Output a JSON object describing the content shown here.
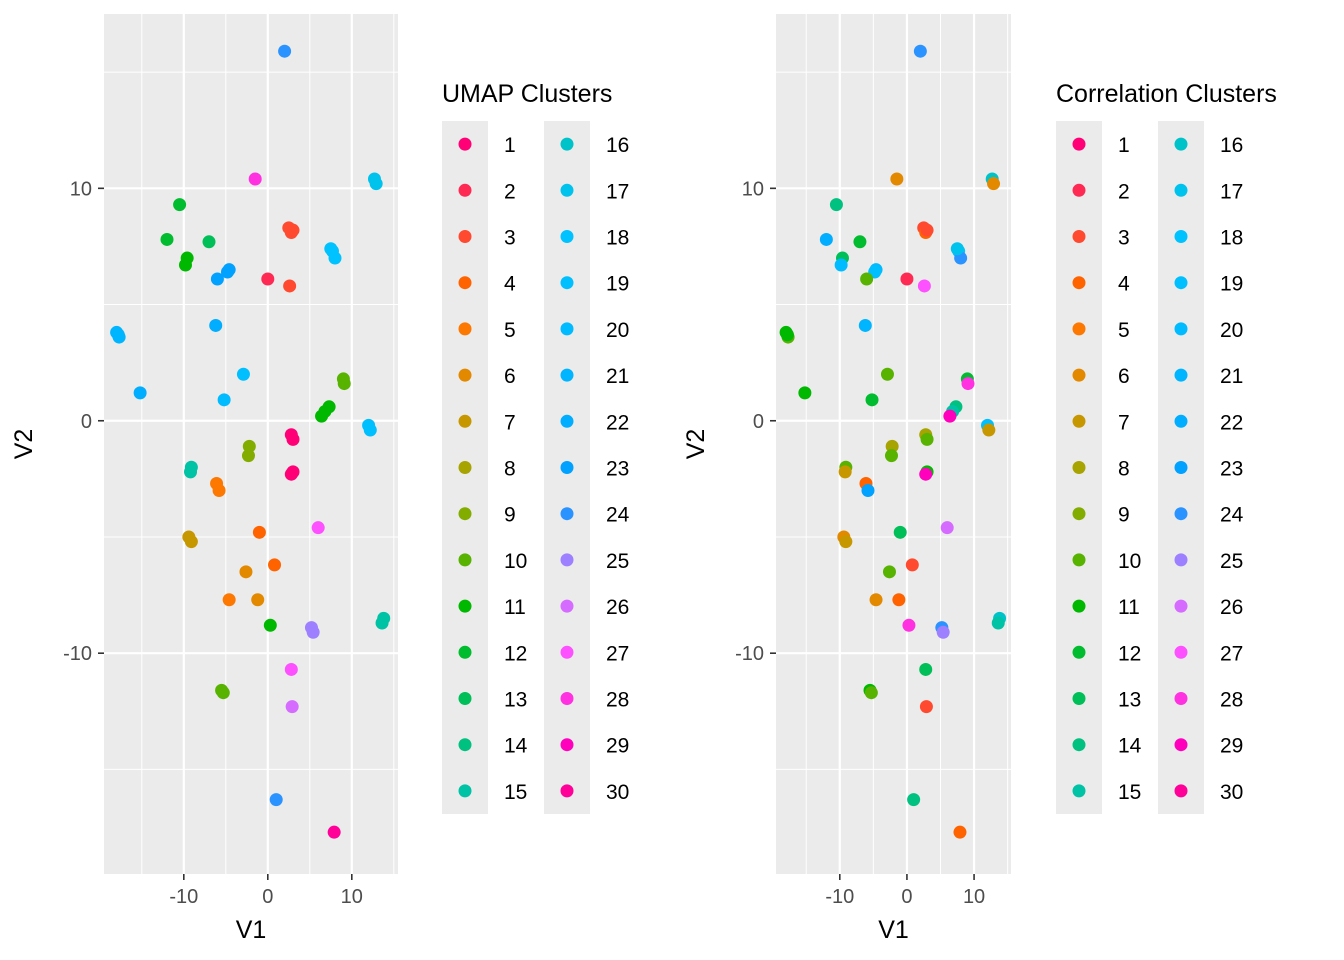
{
  "chart_data": [
    {
      "type": "scatter",
      "xlabel": "V1",
      "ylabel": "V2",
      "xlim": [
        -19.5,
        15.5
      ],
      "ylim": [
        -19.5,
        17.5
      ],
      "x_ticks": [
        -10,
        0,
        10
      ],
      "x_tick_labels": [
        "-10",
        "0",
        "10"
      ],
      "y_ticks": [
        -10,
        0,
        10
      ],
      "y_tick_labels": [
        "-10",
        "0",
        "10"
      ],
      "grid": true,
      "legend": {
        "title": "UMAP Clusters",
        "placement": "right",
        "entries": [
          "1",
          "2",
          "3",
          "4",
          "5",
          "6",
          "7",
          "8",
          "9",
          "10",
          "11",
          "12",
          "13",
          "14",
          "15",
          "16",
          "17",
          "18",
          "19",
          "20",
          "21",
          "22",
          "23",
          "24",
          "25",
          "26",
          "27",
          "28",
          "29",
          "30"
        ]
      },
      "points": [
        {
          "x": 2,
          "y": 15.9,
          "c": 24
        },
        {
          "x": -1.5,
          "y": 10.4,
          "c": 28
        },
        {
          "x": 12.7,
          "y": 10.4,
          "c": 17
        },
        {
          "x": 12.9,
          "y": 10.2,
          "c": 17
        },
        {
          "x": -10.5,
          "y": 9.3,
          "c": 12
        },
        {
          "x": 2.5,
          "y": 8.3,
          "c": 3
        },
        {
          "x": 2.8,
          "y": 8.1,
          "c": 3
        },
        {
          "x": 3,
          "y": 8.2,
          "c": 3
        },
        {
          "x": -12,
          "y": 7.8,
          "c": 12
        },
        {
          "x": -7,
          "y": 7.7,
          "c": 13
        },
        {
          "x": 7.7,
          "y": 7.3,
          "c": 18
        },
        {
          "x": 8,
          "y": 7,
          "c": 18
        },
        {
          "x": 7.5,
          "y": 7.4,
          "c": 18
        },
        {
          "x": -9.6,
          "y": 7,
          "c": 11
        },
        {
          "x": -9.8,
          "y": 6.7,
          "c": 11
        },
        {
          "x": -4.6,
          "y": 6.5,
          "c": 23
        },
        {
          "x": -4.8,
          "y": 6.4,
          "c": 23
        },
        {
          "x": 0,
          "y": 6.1,
          "c": 2
        },
        {
          "x": -6,
          "y": 6.1,
          "c": 23
        },
        {
          "x": 2.6,
          "y": 5.8,
          "c": 3
        },
        {
          "x": -6.2,
          "y": 4.1,
          "c": 22
        },
        {
          "x": -18,
          "y": 3.8,
          "c": 21
        },
        {
          "x": -17.7,
          "y": 3.6,
          "c": 21
        },
        {
          "x": -17.8,
          "y": 3.7,
          "c": 21
        },
        {
          "x": -2.9,
          "y": 2,
          "c": 19
        },
        {
          "x": 9,
          "y": 1.8,
          "c": 10
        },
        {
          "x": 9.1,
          "y": 1.6,
          "c": 10
        },
        {
          "x": -15.2,
          "y": 1.2,
          "c": 22
        },
        {
          "x": -5.2,
          "y": 0.9,
          "c": 20
        },
        {
          "x": 7.3,
          "y": 0.6,
          "c": 11
        },
        {
          "x": 6.8,
          "y": 0.4,
          "c": 11
        },
        {
          "x": 6.4,
          "y": 0.2,
          "c": 11
        },
        {
          "x": 12,
          "y": -0.2,
          "c": 19
        },
        {
          "x": 12.2,
          "y": -0.4,
          "c": 19
        },
        {
          "x": 2.8,
          "y": -0.6,
          "c": 1
        },
        {
          "x": 3,
          "y": -0.8,
          "c": 1
        },
        {
          "x": -2.2,
          "y": -1.1,
          "c": 9
        },
        {
          "x": -2.3,
          "y": -1.5,
          "c": 9
        },
        {
          "x": -9.1,
          "y": -2,
          "c": 15
        },
        {
          "x": -9.2,
          "y": -2.2,
          "c": 15
        },
        {
          "x": 3,
          "y": -2.2,
          "c": 1
        },
        {
          "x": 2.8,
          "y": -2.3,
          "c": 1
        },
        {
          "x": -6.1,
          "y": -2.7,
          "c": 5
        },
        {
          "x": -5.8,
          "y": -3,
          "c": 5
        },
        {
          "x": 6,
          "y": -4.6,
          "c": 27
        },
        {
          "x": -1,
          "y": -4.8,
          "c": 4
        },
        {
          "x": -9.4,
          "y": -5,
          "c": 7
        },
        {
          "x": -9.1,
          "y": -5.2,
          "c": 7
        },
        {
          "x": 0.8,
          "y": -6.2,
          "c": 4
        },
        {
          "x": -2.6,
          "y": -6.5,
          "c": 6
        },
        {
          "x": -4.6,
          "y": -7.7,
          "c": 5
        },
        {
          "x": -1.2,
          "y": -7.7,
          "c": 6
        },
        {
          "x": 0.3,
          "y": -8.8,
          "c": 11
        },
        {
          "x": 5.2,
          "y": -8.9,
          "c": 25
        },
        {
          "x": 5.4,
          "y": -9.1,
          "c": 25
        },
        {
          "x": 13.8,
          "y": -8.5,
          "c": 15
        },
        {
          "x": 13.6,
          "y": -8.7,
          "c": 15
        },
        {
          "x": -5.5,
          "y": -11.6,
          "c": 10
        },
        {
          "x": -5.3,
          "y": -11.7,
          "c": 10
        },
        {
          "x": 2.8,
          "y": -10.7,
          "c": 27
        },
        {
          "x": 2.9,
          "y": -12.3,
          "c": 26
        },
        {
          "x": 1,
          "y": -16.3,
          "c": 24
        },
        {
          "x": 7.9,
          "y": -17.7,
          "c": 30
        }
      ]
    },
    {
      "type": "scatter",
      "xlabel": "V1",
      "ylabel": "V2",
      "xlim": [
        -19.5,
        15.5
      ],
      "ylim": [
        -19.5,
        17.5
      ],
      "x_ticks": [
        -10,
        0,
        10
      ],
      "x_tick_labels": [
        "-10",
        "0",
        "10"
      ],
      "y_ticks": [
        -10,
        0,
        10
      ],
      "y_tick_labels": [
        "-10",
        "0",
        "10"
      ],
      "grid": true,
      "legend": {
        "title": "Correlation Clusters",
        "placement": "right",
        "entries": [
          "1",
          "2",
          "3",
          "4",
          "5",
          "6",
          "7",
          "8",
          "9",
          "10",
          "11",
          "12",
          "13",
          "14",
          "15",
          "16",
          "17",
          "18",
          "19",
          "20",
          "21",
          "22",
          "23",
          "24",
          "25",
          "26",
          "27",
          "28",
          "29",
          "30"
        ]
      },
      "points": [
        {
          "x": 2,
          "y": 15.9,
          "c": 24
        },
        {
          "x": -1.5,
          "y": 10.4,
          "c": 6
        },
        {
          "x": 12.7,
          "y": 10.4,
          "c": 16
        },
        {
          "x": 12.9,
          "y": 10.2,
          "c": 6
        },
        {
          "x": -10.5,
          "y": 9.3,
          "c": 14
        },
        {
          "x": 2.5,
          "y": 8.3,
          "c": 3
        },
        {
          "x": 2.8,
          "y": 8.1,
          "c": 4
        },
        {
          "x": 3,
          "y": 8.2,
          "c": 3
        },
        {
          "x": -12,
          "y": 7.8,
          "c": 22
        },
        {
          "x": -7,
          "y": 7.7,
          "c": 12
        },
        {
          "x": 7.7,
          "y": 7.3,
          "c": 18
        },
        {
          "x": 8,
          "y": 7,
          "c": 24
        },
        {
          "x": 7.5,
          "y": 7.4,
          "c": 17
        },
        {
          "x": -9.6,
          "y": 7,
          "c": 13
        },
        {
          "x": -9.8,
          "y": 6.7,
          "c": 20
        },
        {
          "x": -4.6,
          "y": 6.5,
          "c": 20
        },
        {
          "x": -4.8,
          "y": 6.4,
          "c": 19
        },
        {
          "x": 0,
          "y": 6.1,
          "c": 2
        },
        {
          "x": -6,
          "y": 6.1,
          "c": 10
        },
        {
          "x": 2.6,
          "y": 5.8,
          "c": 27
        },
        {
          "x": -6.2,
          "y": 4.1,
          "c": 21
        },
        {
          "x": -18,
          "y": 3.8,
          "c": 11
        },
        {
          "x": -17.7,
          "y": 3.6,
          "c": 10
        },
        {
          "x": -17.8,
          "y": 3.7,
          "c": 11
        },
        {
          "x": -2.9,
          "y": 2,
          "c": 10
        },
        {
          "x": 9,
          "y": 1.8,
          "c": 12
        },
        {
          "x": 9.1,
          "y": 1.6,
          "c": 28
        },
        {
          "x": -15.2,
          "y": 1.2,
          "c": 11
        },
        {
          "x": -5.2,
          "y": 0.9,
          "c": 12
        },
        {
          "x": 7.3,
          "y": 0.6,
          "c": 14
        },
        {
          "x": 6.8,
          "y": 0.4,
          "c": 15
        },
        {
          "x": 6.4,
          "y": 0.2,
          "c": 29
        },
        {
          "x": 12,
          "y": -0.2,
          "c": 19
        },
        {
          "x": 12.2,
          "y": -0.4,
          "c": 7
        },
        {
          "x": 2.8,
          "y": -0.6,
          "c": 8
        },
        {
          "x": 3,
          "y": -0.8,
          "c": 10
        },
        {
          "x": -2.2,
          "y": -1.1,
          "c": 8
        },
        {
          "x": -2.3,
          "y": -1.5,
          "c": 10
        },
        {
          "x": -9.1,
          "y": -2,
          "c": 10
        },
        {
          "x": -9.2,
          "y": -2.2,
          "c": 7
        },
        {
          "x": 3,
          "y": -2.2,
          "c": 11
        },
        {
          "x": 2.8,
          "y": -2.3,
          "c": 29
        },
        {
          "x": -6.1,
          "y": -2.7,
          "c": 4
        },
        {
          "x": -5.8,
          "y": -3,
          "c": 23
        },
        {
          "x": 6,
          "y": -4.6,
          "c": 26
        },
        {
          "x": -1,
          "y": -4.8,
          "c": 13
        },
        {
          "x": -9.4,
          "y": -5,
          "c": 6
        },
        {
          "x": -9.1,
          "y": -5.2,
          "c": 7
        },
        {
          "x": 0.8,
          "y": -6.2,
          "c": 3
        },
        {
          "x": -2.6,
          "y": -6.5,
          "c": 10
        },
        {
          "x": -4.6,
          "y": -7.7,
          "c": 6
        },
        {
          "x": -1.2,
          "y": -7.7,
          "c": 4
        },
        {
          "x": 0.3,
          "y": -8.8,
          "c": 28
        },
        {
          "x": 5.2,
          "y": -8.9,
          "c": 24
        },
        {
          "x": 5.4,
          "y": -9.1,
          "c": 25
        },
        {
          "x": 13.8,
          "y": -8.5,
          "c": 16
        },
        {
          "x": 13.6,
          "y": -8.7,
          "c": 15
        },
        {
          "x": -5.5,
          "y": -11.6,
          "c": 11
        },
        {
          "x": -5.3,
          "y": -11.7,
          "c": 10
        },
        {
          "x": 2.8,
          "y": -10.7,
          "c": 13
        },
        {
          "x": 2.9,
          "y": -12.3,
          "c": 3
        },
        {
          "x": 1,
          "y": -16.3,
          "c": 14
        },
        {
          "x": 7.9,
          "y": -17.7,
          "c": 4
        }
      ]
    }
  ]
}
